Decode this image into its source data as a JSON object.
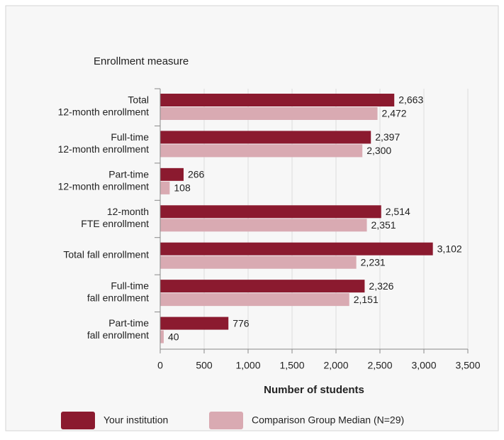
{
  "chart_data": {
    "type": "bar",
    "orientation": "horizontal",
    "y_axis_title": "Enrollment measure",
    "x_axis_title": "Number of students",
    "categories": [
      [
        "Total",
        "12-month enrollment"
      ],
      [
        "Full-time",
        "12-month enrollment"
      ],
      [
        "Part-time",
        "12-month enrollment"
      ],
      [
        "12-month",
        "FTE enrollment"
      ],
      [
        "Total fall enrollment"
      ],
      [
        "Full-time",
        "fall enrollment"
      ],
      [
        "Part-time",
        "fall enrollment"
      ]
    ],
    "series": [
      {
        "name": "Your institution",
        "color": "#8b1a2f",
        "values": [
          2663,
          2397,
          266,
          2514,
          3102,
          2326,
          776
        ],
        "value_labels": [
          "2,663",
          "2,397",
          "266",
          "2,514",
          "3,102",
          "2,326",
          "776"
        ]
      },
      {
        "name": "Comparison Group Median (N=29)",
        "color": "#d9aab2",
        "values": [
          2472,
          2300,
          108,
          2351,
          2231,
          2151,
          40
        ],
        "value_labels": [
          "2,472",
          "2,300",
          "108",
          "2,351",
          "2,231",
          "2,151",
          "40"
        ]
      }
    ],
    "xlim": [
      0,
      3500
    ],
    "xticks": [
      0,
      500,
      {
        "value": 1000,
        "label": "1,000"
      },
      {
        "value": 1500,
        "label": "1,500"
      },
      {
        "value": 2000,
        "label": "2,000"
      },
      {
        "value": 2500,
        "label": "2,500"
      },
      {
        "value": 3000,
        "label": "3,000"
      },
      {
        "value": 3500,
        "label": "3,500"
      }
    ],
    "grid": true
  }
}
